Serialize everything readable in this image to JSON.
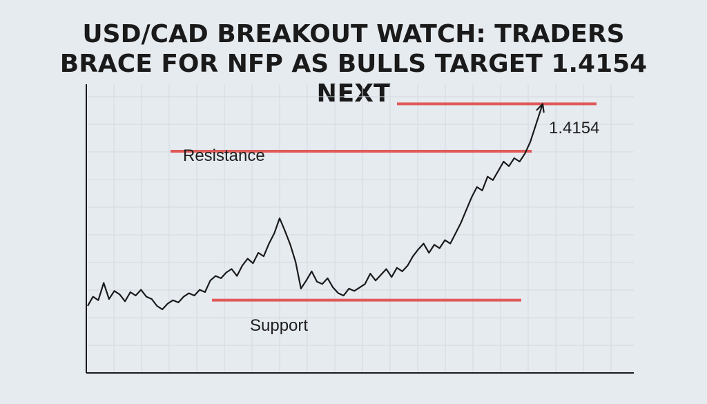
{
  "colors": {
    "background": "#e6ebf0",
    "grid": "#d3d9e0",
    "axis": "#1a1a1a",
    "price_line": "#1a1a1a",
    "level_line": "#e05a5a"
  },
  "chart_data": {
    "type": "line",
    "title_lines": [
      "USD/CAD BREAKOUT WATCH: TRADERS",
      "BRACE FOR NFP AS BULLS TARGET 1.4154",
      "NEXT"
    ],
    "xlabel": "",
    "ylabel": "",
    "grid": true,
    "tick_labels_shown": false,
    "series": [
      {
        "values": [
          58,
          66,
          63,
          78,
          64,
          71,
          68,
          62,
          70,
          67,
          72,
          66,
          64,
          58,
          55,
          60,
          63,
          61,
          66,
          69,
          67,
          72,
          70,
          80,
          84,
          82,
          87,
          90,
          84,
          93,
          99,
          95,
          104,
          101,
          112,
          121,
          134,
          123,
          111,
          96,
          73,
          80,
          88,
          79,
          77,
          82,
          74,
          69,
          67,
          73,
          71,
          74,
          77,
          86,
          80,
          85,
          90,
          83,
          91,
          88,
          93,
          101,
          107,
          112,
          104,
          111,
          108,
          115,
          112,
          121,
          130,
          141,
          152,
          161,
          158,
          170,
          167,
          175,
          183,
          179,
          186,
          183,
          190,
          200
        ]
      }
    ],
    "levels": [
      {
        "label": "Resistance",
        "value": 192
      },
      {
        "label": "Support",
        "value": 63
      },
      {
        "label": "1.4154",
        "value": 233
      }
    ],
    "arrow": {
      "label": "1.4154",
      "from_value": 200,
      "to_value": 233
    }
  }
}
